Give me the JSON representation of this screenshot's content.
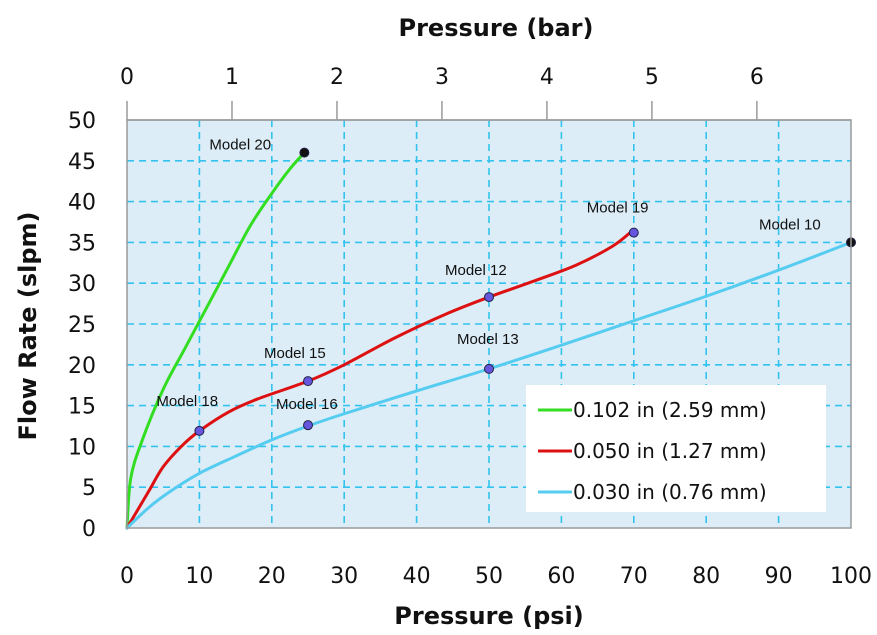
{
  "chart_data": {
    "type": "line",
    "title": "",
    "xlabel": "Pressure (psi)",
    "ylabel": "Flow Rate (slpm)",
    "x2label": "Pressure (bar)",
    "xlim": [
      0,
      100
    ],
    "ylim": [
      0,
      50
    ],
    "x_ticks": [
      0,
      10,
      20,
      30,
      40,
      50,
      60,
      70,
      80,
      90,
      100
    ],
    "y_ticks": [
      0,
      5,
      10,
      15,
      20,
      25,
      30,
      35,
      40,
      45,
      50
    ],
    "x2_ticks": [
      0,
      1,
      2,
      3,
      4,
      5,
      6
    ],
    "x2_ticks_psi": [
      0,
      14.5,
      29.0,
      43.5,
      58.0,
      72.5,
      87.0
    ],
    "grid": true,
    "legend_position": "bottom-right",
    "colors": {
      "plot_background": "#dcedf7",
      "grid": "#33c3ee",
      "green": "#33dd22",
      "red": "#dd1111",
      "blue": "#55ccf0",
      "marker": "#6655dd"
    },
    "series": [
      {
        "name": "0.102 in (2.59 mm)",
        "color": "#33dd22",
        "x": [
          0,
          0.5,
          2,
          5,
          8,
          11,
          14,
          17,
          20,
          22.5,
          24.5
        ],
        "y": [
          0,
          6,
          10.5,
          17,
          22,
          27,
          32,
          37,
          41,
          44,
          46
        ]
      },
      {
        "name": "0.050 in (1.27 mm)",
        "color": "#dd1111",
        "x": [
          0,
          1,
          3,
          5,
          7.5,
          10,
          14,
          18,
          25,
          30,
          37,
          44,
          50,
          56,
          62,
          67,
          69.5
        ],
        "y": [
          0,
          1.5,
          4.5,
          7.5,
          10,
          11.9,
          14.2,
          15.8,
          18,
          20,
          23.3,
          26.2,
          28.3,
          30.2,
          32.2,
          34.5,
          36.2
        ]
      },
      {
        "name": "0.030 in (0.76 mm)",
        "color": "#55ccf0",
        "x": [
          0,
          3,
          6,
          10,
          15,
          20,
          25,
          30,
          40,
          50,
          60,
          70,
          80,
          90,
          100
        ],
        "y": [
          0,
          2.5,
          4.5,
          6.7,
          8.8,
          10.8,
          12.5,
          14,
          16.8,
          19.5,
          22.4,
          25.4,
          28.4,
          31.6,
          35
        ]
      }
    ],
    "annotations": [
      {
        "label": "Model 20",
        "x": 24.5,
        "y": 46,
        "marker": "#111111",
        "label_dx": -95,
        "label_dy": -3
      },
      {
        "label": "Model 19",
        "x": 70,
        "y": 36.2,
        "marker": "#6655dd",
        "label_dx": -47,
        "label_dy": -20
      },
      {
        "label": "Model 10",
        "x": 100,
        "y": 35,
        "marker": "#111111",
        "label_dx": -92,
        "label_dy": -13
      },
      {
        "label": "Model 12",
        "x": 50,
        "y": 28.3,
        "marker": "#6655dd",
        "label_dx": -44,
        "label_dy": -22
      },
      {
        "label": "Model 13",
        "x": 50,
        "y": 19.5,
        "marker": "#6655dd",
        "label_dx": -32,
        "label_dy": -25
      },
      {
        "label": "Model 15",
        "x": 25,
        "y": 18,
        "marker": "#6655dd",
        "label_dx": -44,
        "label_dy": -23
      },
      {
        "label": "Model 18",
        "x": 10,
        "y": 11.9,
        "marker": "#6655dd",
        "label_dx": -43,
        "label_dy": -25
      },
      {
        "label": "Model 16",
        "x": 25,
        "y": 12.6,
        "marker": "#6655dd",
        "label_dx": -32,
        "label_dy": -16
      }
    ]
  }
}
